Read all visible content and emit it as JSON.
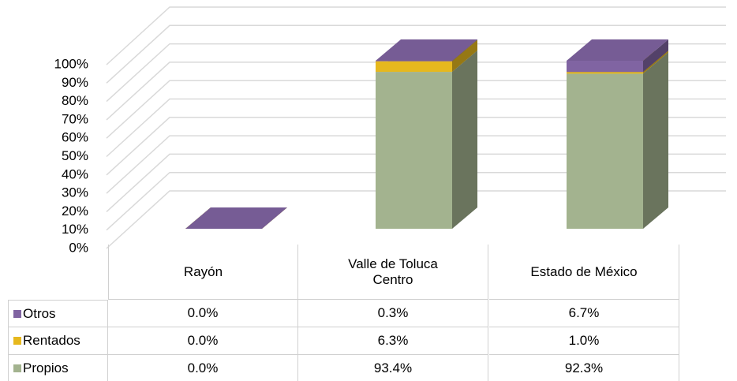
{
  "chart_data": {
    "type": "bar3d_stacked",
    "categories": [
      "Rayón",
      "Valle de Toluca Centro",
      "Estado de México"
    ],
    "series": [
      {
        "name": "Propios",
        "color": "#a3b38f",
        "values": [
          0.0,
          93.4,
          92.3
        ],
        "value_labels": [
          "0.0%",
          "93.4%",
          "92.3%"
        ]
      },
      {
        "name": "Rentados",
        "color": "#e6b81e",
        "values": [
          0.0,
          6.3,
          1.0
        ],
        "value_labels": [
          "0.0%",
          "6.3%",
          "1.0%"
        ]
      },
      {
        "name": "Otros",
        "color": "#8064a2",
        "values": [
          0.0,
          0.3,
          6.7
        ],
        "value_labels": [
          "0.0%",
          "0.3%",
          "6.7%"
        ]
      }
    ],
    "ylim": [
      0,
      100
    ],
    "yticks": [
      {
        "value": 0,
        "label": "0%"
      },
      {
        "value": 10,
        "label": "10%"
      },
      {
        "value": 20,
        "label": "20%"
      },
      {
        "value": 30,
        "label": "30%"
      },
      {
        "value": 40,
        "label": "40%"
      },
      {
        "value": 50,
        "label": "50%"
      },
      {
        "value": 60,
        "label": "60%"
      },
      {
        "value": 70,
        "label": "70%"
      },
      {
        "value": 80,
        "label": "80%"
      },
      {
        "value": 90,
        "label": "90%"
      },
      {
        "value": 100,
        "label": "100%"
      }
    ],
    "grid": true
  }
}
